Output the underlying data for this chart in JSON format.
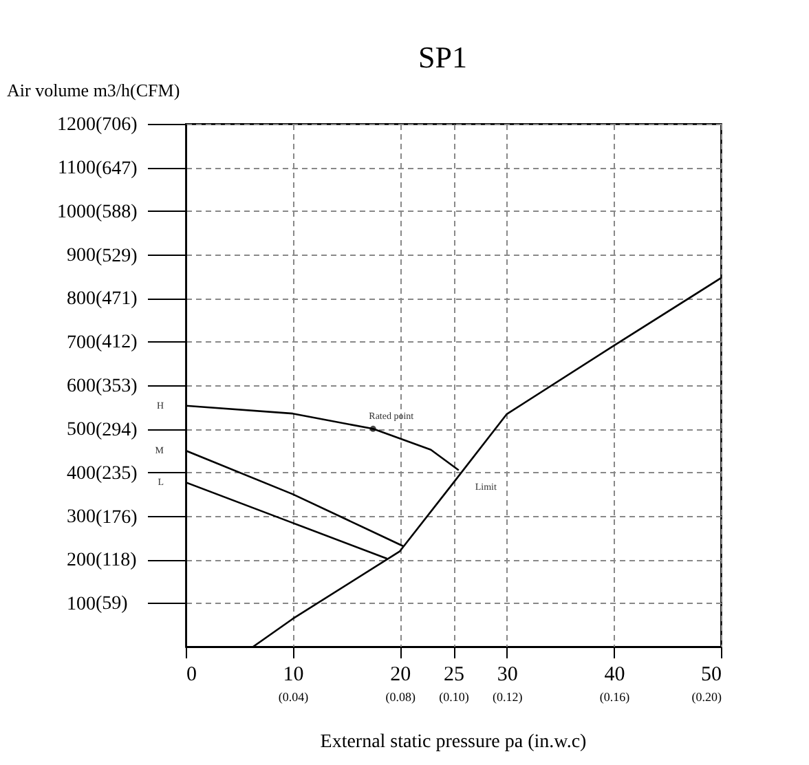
{
  "chart_data": {
    "type": "line",
    "title": "SP1",
    "xlabel": "External static pressure pa  (in.w.c)",
    "ylabel": "Air volume m3/h(CFM)",
    "xlim": [
      0,
      50
    ],
    "ylim": [
      0,
      1200
    ],
    "xticks": [
      0,
      10,
      20,
      25,
      30,
      40,
      50
    ],
    "yticks": [
      100,
      200,
      300,
      400,
      500,
      600,
      700,
      800,
      900,
      1000,
      1100,
      1200
    ],
    "x2lim": [
      0,
      0.2
    ],
    "x2ticks": [
      {
        "value": 0.04,
        "label": "(0.04)"
      },
      {
        "value": 0.08,
        "label": "(0.08)"
      },
      {
        "value": 0.1,
        "label": "(0.10)"
      },
      {
        "value": 0.12,
        "label": "(0.12)"
      },
      {
        "value": 0.16,
        "label": "(0.16)"
      },
      {
        "value": 0.2,
        "label": "(0.20)"
      }
    ],
    "y2lim": [
      0,
      706
    ],
    "y2ticks": [
      {
        "value": 59,
        "label": "(59)"
      },
      {
        "value": 118,
        "label": "(118)"
      },
      {
        "value": 176,
        "label": "(176)"
      },
      {
        "value": 235,
        "label": "(235)"
      },
      {
        "value": 294,
        "label": "(294)"
      },
      {
        "value": 353,
        "label": "(353)"
      },
      {
        "value": 412,
        "label": "(412)"
      },
      {
        "value": 471,
        "label": "(471)"
      },
      {
        "value": 529,
        "label": "(529)"
      },
      {
        "value": 588,
        "label": "(588)"
      },
      {
        "value": 647,
        "label": "(647)"
      },
      {
        "value": 706,
        "label": "(706)"
      }
    ],
    "grid": true,
    "line_style": "solid",
    "series": [
      {
        "color": "#000000",
        "x": [
          0,
          10,
          17.5,
          22.9,
          25.5
        ],
        "values": [
          553,
          535,
          500,
          452,
          405
        ]
      },
      {
        "color": "#000000",
        "x": [
          0,
          10,
          20.3
        ],
        "values": [
          450,
          350,
          231
        ]
      },
      {
        "color": "#000000",
        "x": [
          0,
          10,
          18.8
        ],
        "values": [
          377,
          284,
          202
        ]
      },
      {
        "color": "#000000",
        "x": [
          6.3,
          10,
          20,
          25,
          30,
          40,
          50
        ],
        "values": [
          0,
          64,
          219,
          376,
          534,
          691,
          846
        ]
      },
      {
        "type": "scatter",
        "marker": "circle",
        "color": "#000000",
        "x": [
          17.5
        ],
        "values": [
          500
        ]
      }
    ],
    "annotations": [
      {
        "text": "H",
        "x": 0,
        "y": 553
      },
      {
        "text": "M",
        "x": 0,
        "y": 450
      },
      {
        "text": "L",
        "x": 0,
        "y": 377
      },
      {
        "text": "Rated point",
        "x": 17.5,
        "y": 500
      },
      {
        "text": "Limit",
        "x": 25.5,
        "y": 405
      }
    ]
  }
}
